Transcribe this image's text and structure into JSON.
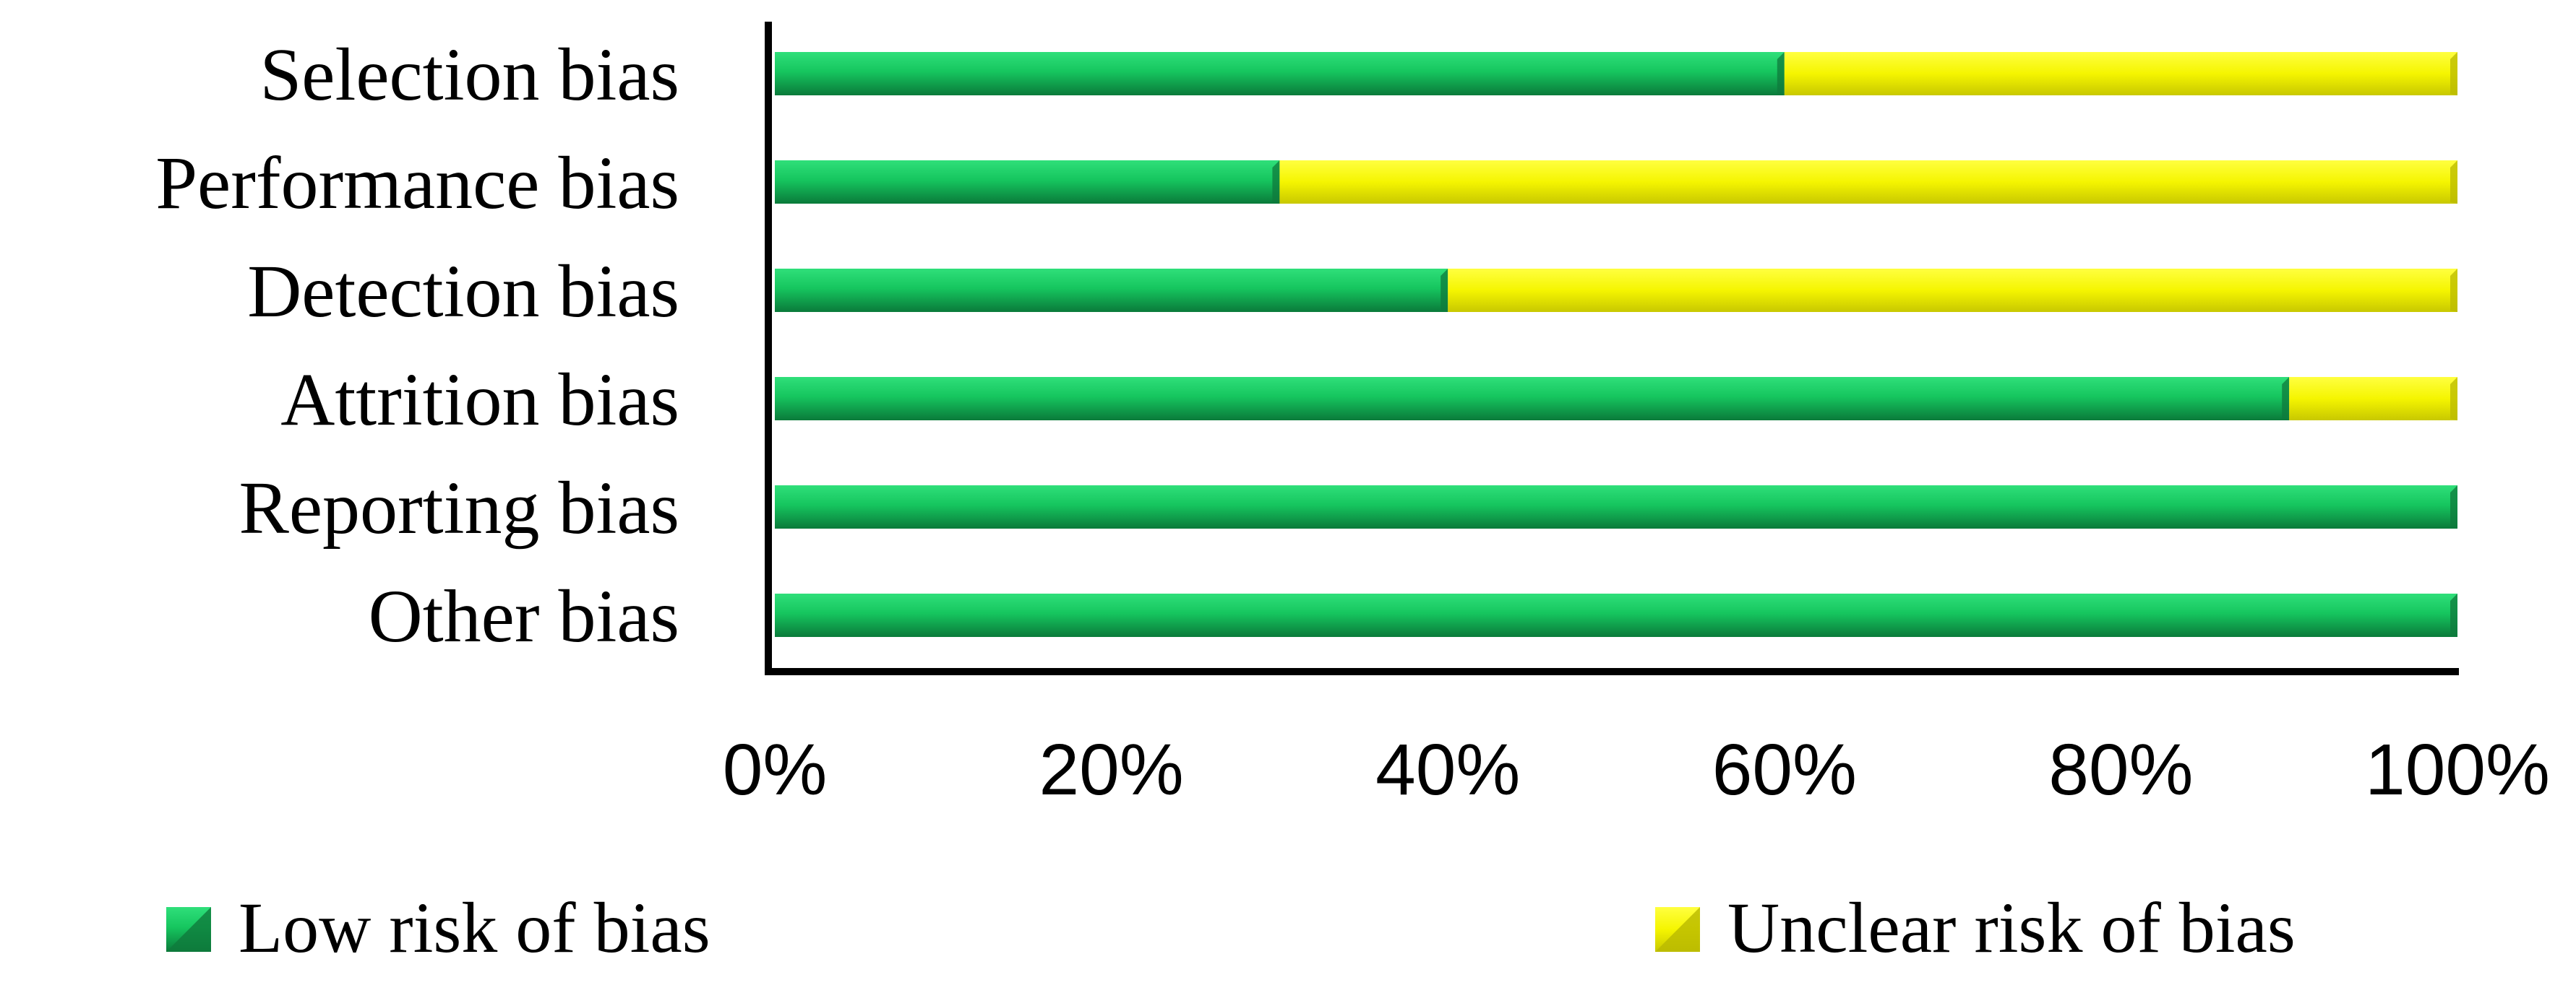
{
  "chart_data": {
    "type": "bar",
    "orientation": "horizontal",
    "stacked": true,
    "categories": [
      "Selection bias",
      "Performance bias",
      "Detection bias",
      "Attrition bias",
      "Reporting bias",
      "Other bias"
    ],
    "series": [
      {
        "name": "Low risk of bias",
        "color": "#1fbf5f",
        "values": [
          60,
          30,
          40,
          90,
          100,
          100
        ]
      },
      {
        "name": "Unclear risk of bias",
        "color": "#f2f200",
        "values": [
          40,
          70,
          60,
          10,
          0,
          0
        ]
      }
    ],
    "x_ticks": [
      "0%",
      "20%",
      "40%",
      "60%",
      "80%",
      "100%"
    ],
    "xlim": [
      0,
      100
    ],
    "grid": false,
    "legend_position": "bottom",
    "colors": {
      "low": "#1fbf5f",
      "low_dark": "#0f7a3c",
      "unclear": "#f2f200",
      "unclear_dark": "#b9b900",
      "axis": "#000000"
    }
  }
}
